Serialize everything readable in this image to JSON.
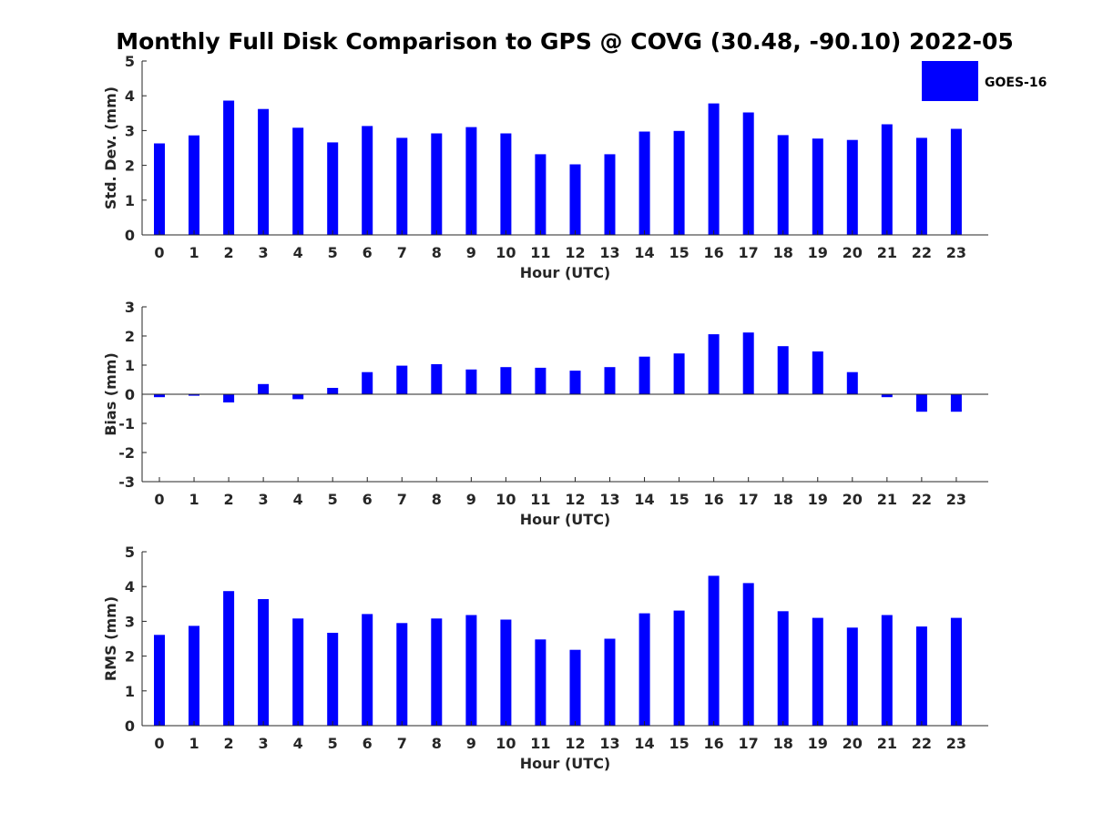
{
  "figure": {
    "title": "Monthly Full Disk Comparison to GPS @ COVG (30.48, -90.10) 2022-05",
    "legend": {
      "label": "GOES-16",
      "color": "#0000ff",
      "placement": "top-right"
    }
  },
  "chart_data": [
    {
      "type": "bar",
      "ylabel": "Std. Dev. (mm)",
      "xlabel": "Hour (UTC)",
      "ylim": [
        0,
        5
      ],
      "yticks": [
        0,
        1,
        2,
        3,
        4,
        5
      ],
      "categories": [
        "0",
        "1",
        "2",
        "3",
        "4",
        "5",
        "6",
        "7",
        "8",
        "9",
        "10",
        "11",
        "12",
        "13",
        "14",
        "15",
        "16",
        "17",
        "18",
        "19",
        "20",
        "21",
        "22",
        "23"
      ],
      "series": [
        {
          "name": "GOES-16",
          "color": "#0000ff",
          "values": [
            2.63,
            2.86,
            3.86,
            3.62,
            3.08,
            2.66,
            3.13,
            2.79,
            2.92,
            3.1,
            2.92,
            2.32,
            2.03,
            2.32,
            2.97,
            2.99,
            3.78,
            3.52,
            2.87,
            2.77,
            2.73,
            3.18,
            2.79,
            3.05
          ]
        }
      ]
    },
    {
      "type": "bar",
      "ylabel": "Bias (mm)",
      "xlabel": "Hour (UTC)",
      "ylim": [
        -3,
        3
      ],
      "yticks": [
        -3,
        -2,
        -1,
        0,
        1,
        2,
        3
      ],
      "categories": [
        "0",
        "1",
        "2",
        "3",
        "4",
        "5",
        "6",
        "7",
        "8",
        "9",
        "10",
        "11",
        "12",
        "13",
        "14",
        "15",
        "16",
        "17",
        "18",
        "19",
        "20",
        "21",
        "22",
        "23"
      ],
      "series": [
        {
          "name": "GOES-16",
          "color": "#0000ff",
          "values": [
            -0.1,
            -0.05,
            -0.28,
            0.35,
            -0.17,
            0.22,
            0.76,
            0.98,
            1.03,
            0.85,
            0.93,
            0.91,
            0.81,
            0.93,
            1.29,
            1.4,
            2.06,
            2.12,
            1.65,
            1.47,
            0.76,
            -0.1,
            -0.6,
            -0.6
          ]
        }
      ]
    },
    {
      "type": "bar",
      "ylabel": "RMS (mm)",
      "xlabel": "Hour (UTC)",
      "ylim": [
        0,
        5
      ],
      "yticks": [
        0,
        1,
        2,
        3,
        4,
        5
      ],
      "categories": [
        "0",
        "1",
        "2",
        "3",
        "4",
        "5",
        "6",
        "7",
        "8",
        "9",
        "10",
        "11",
        "12",
        "13",
        "14",
        "15",
        "16",
        "17",
        "18",
        "19",
        "20",
        "21",
        "22",
        "23"
      ],
      "series": [
        {
          "name": "GOES-16",
          "color": "#0000ff",
          "values": [
            2.61,
            2.87,
            3.87,
            3.64,
            3.08,
            2.67,
            3.21,
            2.95,
            3.08,
            3.18,
            3.05,
            2.48,
            2.18,
            2.5,
            3.23,
            3.31,
            4.31,
            4.1,
            3.29,
            3.1,
            2.82,
            3.18,
            2.85,
            3.1
          ]
        }
      ]
    }
  ]
}
